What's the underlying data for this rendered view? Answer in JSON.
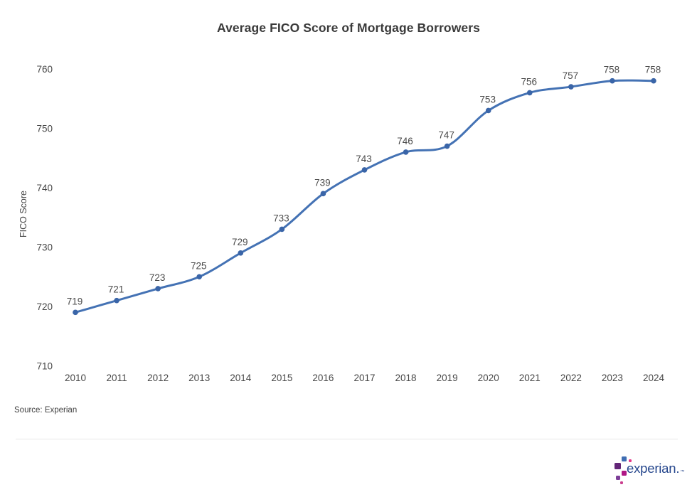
{
  "chart_data": {
    "type": "line",
    "title": "Average FICO Score of Mortgage Borrowers",
    "xlabel": "",
    "ylabel": "FICO Score",
    "categories": [
      "2010",
      "2011",
      "2012",
      "2013",
      "2014",
      "2015",
      "2016",
      "2017",
      "2018",
      "2019",
      "2020",
      "2021",
      "2022",
      "2023",
      "2024"
    ],
    "values": [
      719,
      721,
      723,
      725,
      729,
      733,
      739,
      743,
      746,
      747,
      753,
      756,
      757,
      758,
      758
    ],
    "ylim": [
      710,
      760
    ],
    "yticks": [
      710,
      720,
      730,
      740,
      750,
      760
    ],
    "grid": false,
    "legend_position": "none",
    "data_labels": true,
    "line_color": "#4472b4",
    "marker_color": "#3a65a8"
  },
  "footer": {
    "source": "Source: Experian",
    "logo_text": "experian.",
    "logo_trademark": "™"
  },
  "colors": {
    "title_text": "#3a3a3a",
    "axis_text": "#474747",
    "data_label_text": "#4a4a4a",
    "logo_blue": "#26478d",
    "divider": "#e7e7e7"
  }
}
